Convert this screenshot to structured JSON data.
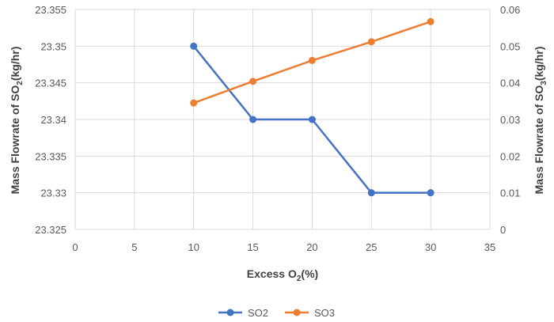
{
  "chart_data": {
    "type": "line",
    "x": [
      10,
      15,
      20,
      25,
      30
    ],
    "series": [
      {
        "name": "SO2",
        "axis": "left",
        "color": "#4472C4",
        "values": [
          23.35,
          23.34,
          23.34,
          23.33,
          23.33
        ]
      },
      {
        "name": "SO3",
        "axis": "right",
        "color": "#ED7D31",
        "values": [
          0.0345,
          0.0404,
          0.0461,
          0.0512,
          0.0567
        ]
      }
    ],
    "xlabel": {
      "main": "Excess O",
      "sub": "2",
      "suffix": "(%)"
    },
    "ylabel_left": {
      "main": "Mass Flowrate of SO",
      "sub": "2",
      "suffix": "(kg/hr)"
    },
    "ylabel_right": {
      "main": "Mass Flowrate of SO",
      "sub": "3",
      "suffix": "(kg/hr)"
    },
    "xlim": [
      0,
      35
    ],
    "xticks": [
      0,
      5,
      10,
      15,
      20,
      25,
      30,
      35
    ],
    "xtick_labels": [
      "0",
      "5",
      "10",
      "15",
      "20",
      "25",
      "30",
      "35"
    ],
    "ylim_left": [
      23.325,
      23.355
    ],
    "yticks_left": [
      23.325,
      23.33,
      23.335,
      23.34,
      23.345,
      23.35,
      23.355
    ],
    "ytick_labels_left": [
      "23.325",
      "23.33",
      "23.335",
      "23.34",
      "23.345",
      "23.35",
      "23.355"
    ],
    "ylim_right": [
      0,
      0.06
    ],
    "yticks_right": [
      0,
      0.01,
      0.02,
      0.03,
      0.04,
      0.05,
      0.06
    ],
    "ytick_labels_right": [
      "0",
      "0.01",
      "0.02",
      "0.03",
      "0.04",
      "0.05",
      "0.06"
    ],
    "grid": true,
    "gridline_color": "#d9d9d9",
    "legend_position": "bottom"
  }
}
